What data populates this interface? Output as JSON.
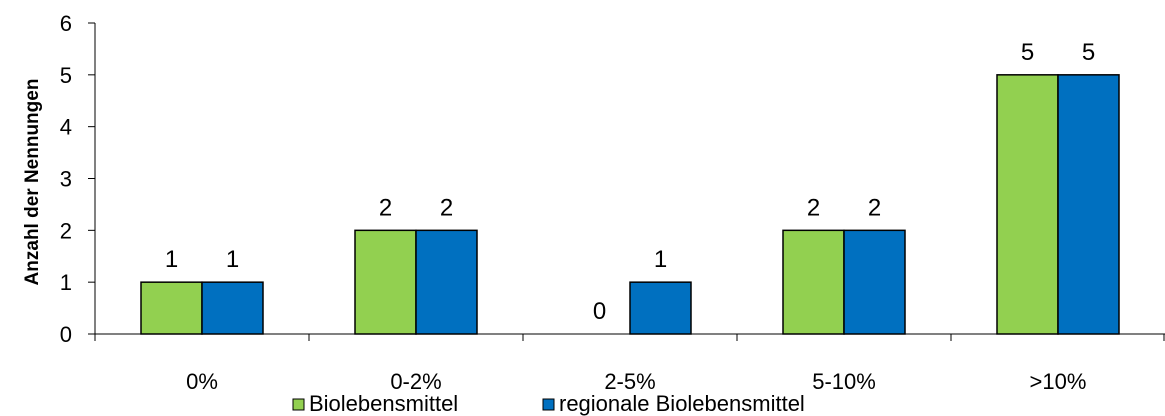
{
  "chart_data": {
    "type": "bar",
    "categories": [
      "0%",
      "0-2%",
      "2-5%",
      "5-10%",
      ">10%"
    ],
    "series": [
      {
        "name": "Biolebensmittel",
        "values": [
          1,
          2,
          0,
          2,
          5
        ],
        "color": "#92d050"
      },
      {
        "name": "regionale Biolebensmittel",
        "values": [
          1,
          2,
          1,
          2,
          5
        ],
        "color": "#0070c0"
      }
    ],
    "title": "",
    "xlabel": "",
    "ylabel": "Anzahl der Nennungen",
    "ylim": [
      0,
      6
    ],
    "yticks": [
      "0",
      "1",
      "2",
      "3",
      "4",
      "5",
      "6"
    ],
    "grid": false,
    "legend": "bottom"
  }
}
